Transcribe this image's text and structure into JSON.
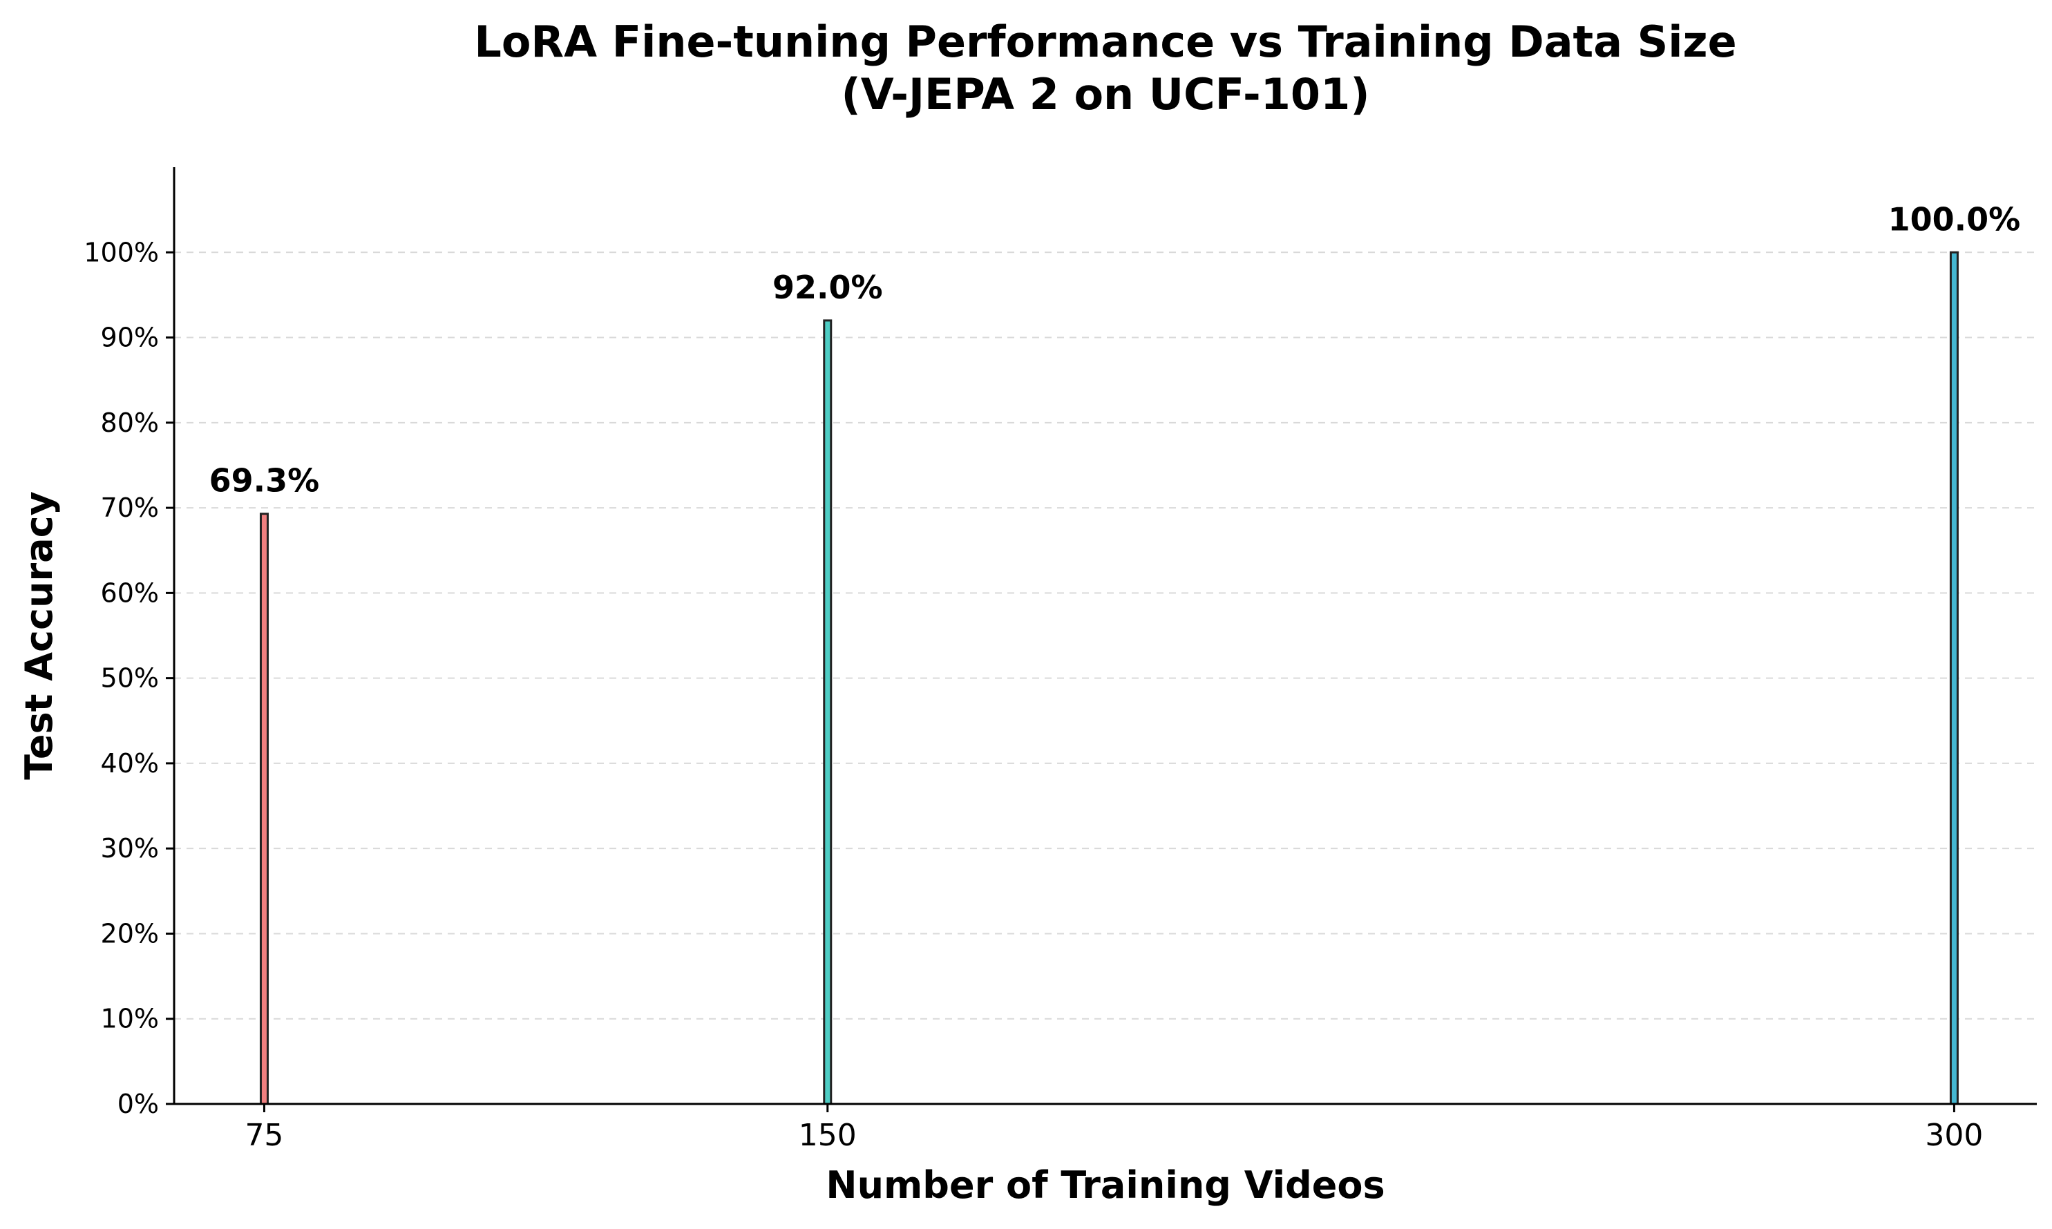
{
  "chart_data": {
    "type": "bar",
    "title": "LoRA Fine-tuning Performance vs Training Data Size",
    "subtitle": "(V-JEPA 2 on UCF-101)",
    "xlabel": "Number of Training Videos",
    "ylabel": "Test Accuracy",
    "x": [
      75,
      150,
      300
    ],
    "x_tick_labels": [
      "75",
      "150",
      "300"
    ],
    "values": [
      69.3,
      92.0,
      100.0
    ],
    "data_labels": [
      "69.3%",
      "92.0%",
      "100.0%"
    ],
    "bar_colors": [
      "#f08080",
      "#4ecdc4",
      "#45b7d1"
    ],
    "bar_edge_color": "#222222",
    "ylim": [
      0,
      110
    ],
    "xlim": [
      63,
      311
    ],
    "y_ticks": [
      0,
      10,
      20,
      30,
      40,
      50,
      60,
      70,
      80,
      90,
      100
    ],
    "y_tick_labels": [
      "0%",
      "10%",
      "20%",
      "30%",
      "40%",
      "50%",
      "60%",
      "70%",
      "80%",
      "90%",
      "100%"
    ],
    "grid": "horizontal dashed",
    "legend": "none"
  }
}
